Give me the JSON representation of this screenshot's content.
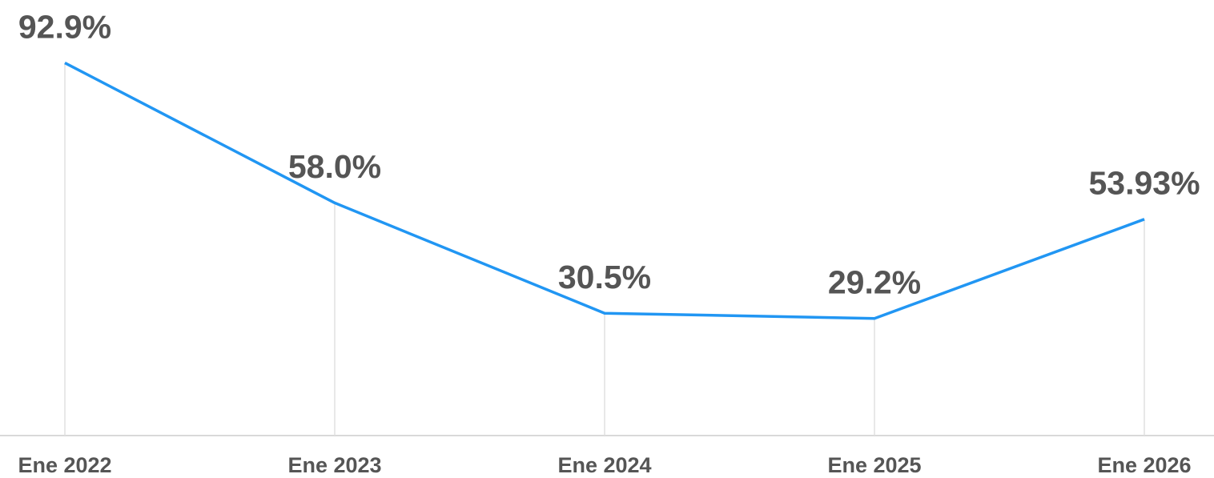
{
  "chart_data": {
    "type": "line",
    "categories": [
      "Ene 2022",
      "Ene 2023",
      "Ene 2024",
      "Ene 2025",
      "Ene 2026"
    ],
    "values": [
      92.9,
      58.0,
      30.5,
      29.2,
      53.93
    ],
    "value_labels": [
      "92.9%",
      "58.0%",
      "30.5%",
      "29.2%",
      "53.93%"
    ],
    "color": "#2196f3",
    "ylim": [
      0,
      100
    ],
    "grid": true
  }
}
